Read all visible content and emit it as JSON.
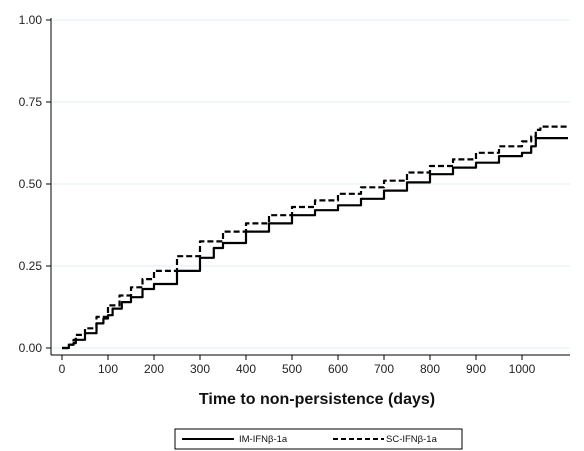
{
  "chart_data": {
    "type": "line",
    "xlabel": "Time to non-persistence (days)",
    "ylabel": "",
    "title": "",
    "xlim": [
      0,
      1100
    ],
    "ylim": [
      0,
      1.0
    ],
    "xticks": [
      0,
      100,
      200,
      300,
      400,
      500,
      600,
      700,
      800,
      900,
      1000
    ],
    "xtick_labels": [
      "0",
      "100",
      "200",
      "300",
      "400",
      "500",
      "600",
      "700",
      "800",
      "900",
      "1000"
    ],
    "yticks": [
      0,
      0.25,
      0.5,
      0.75,
      1.0
    ],
    "ytick_labels": [
      "0.00",
      "0.25",
      "0.50",
      "0.75",
      "1.00"
    ],
    "grid": "horizontal",
    "legend_position": "bottom",
    "series": [
      {
        "name": "IM-IFNβ-1a",
        "style": "solid",
        "color": "#000000",
        "x": [
          0,
          15,
          25,
          30,
          50,
          75,
          90,
          100,
          110,
          130,
          150,
          175,
          200,
          250,
          300,
          330,
          350,
          400,
          450,
          500,
          550,
          600,
          650,
          700,
          750,
          800,
          850,
          900,
          950,
          1000,
          1020,
          1030,
          1045,
          1100
        ],
        "y": [
          0,
          0.01,
          0.015,
          0.025,
          0.045,
          0.075,
          0.09,
          0.1,
          0.12,
          0.14,
          0.155,
          0.18,
          0.195,
          0.235,
          0.275,
          0.305,
          0.32,
          0.355,
          0.38,
          0.405,
          0.42,
          0.435,
          0.455,
          0.48,
          0.505,
          0.53,
          0.55,
          0.565,
          0.585,
          0.595,
          0.615,
          0.64,
          0.64,
          0.64
        ]
      },
      {
        "name": "SC-IFNβ-1a",
        "style": "dashed",
        "color": "#000000",
        "x": [
          0,
          15,
          25,
          30,
          50,
          75,
          100,
          125,
          150,
          175,
          200,
          250,
          300,
          350,
          400,
          450,
          500,
          550,
          600,
          650,
          700,
          750,
          800,
          850,
          900,
          950,
          1000,
          1020,
          1030,
          1040,
          1100
        ],
        "y": [
          0,
          0.01,
          0.025,
          0.04,
          0.06,
          0.095,
          0.13,
          0.16,
          0.185,
          0.21,
          0.235,
          0.28,
          0.325,
          0.355,
          0.38,
          0.405,
          0.43,
          0.45,
          0.47,
          0.49,
          0.51,
          0.535,
          0.555,
          0.575,
          0.595,
          0.615,
          0.63,
          0.645,
          0.665,
          0.675,
          0.675
        ]
      }
    ]
  }
}
